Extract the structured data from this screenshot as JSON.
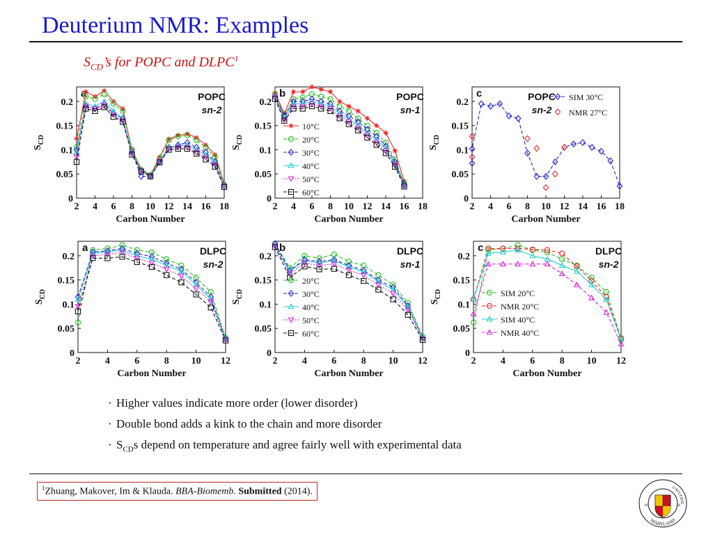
{
  "slide": {
    "title": "Deuterium NMR: Examples",
    "subtitle_pre": "S",
    "subtitle_sub": "CD",
    "subtitle_post": "’s for POPC and DLPC",
    "subtitle_sup": "1",
    "bullets": [
      {
        "pre": "Higher values indicate more order (lower disorder)",
        "sub": "",
        "post": ""
      },
      {
        "pre": "Double bond adds a kink to the chain and more disorder",
        "sub": "",
        "post": ""
      },
      {
        "pre": "S",
        "sub": "CD",
        "post": "s depend on temperature and agree fairly well with experimental data"
      }
    ],
    "citation": {
      "sup": "1",
      "authors": "Zhuang, Makover, Im & Klauda. ",
      "journal": "BBA-Biomemb.",
      "status": "Submitted",
      "year": " (2014)."
    },
    "logo": {
      "ring_top": "UNIVERSITY OF",
      "ring_bottom": "MARYLAND",
      "year_left": "18",
      "year_right": "56"
    }
  },
  "chart_data": [
    {
      "type": "line",
      "panel_letter": "a",
      "label1": "POPC",
      "label2": "sn-2",
      "xlabel": "Carbon Number",
      "ylabel": "S",
      "ylabel_sub": "CD",
      "xlim": [
        2,
        18
      ],
      "ylim": [
        0,
        0.23
      ],
      "xticks": [
        2,
        4,
        6,
        8,
        10,
        12,
        14,
        16,
        18
      ],
      "yticks": [
        0,
        0.05,
        0.1,
        0.15,
        0.2
      ],
      "x": [
        2,
        3,
        4,
        5,
        6,
        7,
        8,
        9,
        10,
        11,
        12,
        13,
        14,
        15,
        16,
        17,
        18
      ],
      "legend_position": "none",
      "series": [
        {
          "name": "10°C",
          "color": "#ee2222",
          "marker": "star",
          "dash": "",
          "values": [
            0.123,
            0.22,
            0.21,
            0.222,
            0.2,
            0.185,
            0.1,
            0.06,
            0.048,
            0.085,
            0.122,
            0.13,
            0.133,
            0.125,
            0.11,
            0.09,
            0.03
          ]
        },
        {
          "name": "20°C",
          "color": "#22bb22",
          "marker": "circle",
          "dash": "5,3",
          "values": [
            0.105,
            0.21,
            0.205,
            0.215,
            0.195,
            0.18,
            0.1,
            0.058,
            0.048,
            0.082,
            0.12,
            0.128,
            0.13,
            0.12,
            0.105,
            0.085,
            0.027
          ]
        },
        {
          "name": "30°C",
          "color": "#2222cc",
          "marker": "diamond",
          "dash": "5,3",
          "values": [
            0.1,
            0.19,
            0.185,
            0.195,
            0.175,
            0.165,
            0.095,
            0.045,
            0.045,
            0.075,
            0.105,
            0.11,
            0.115,
            0.105,
            0.095,
            0.075,
            0.025
          ]
        },
        {
          "name": "40°C",
          "color": "#22cccc",
          "marker": "triangle",
          "dash": "",
          "values": [
            0.095,
            0.195,
            0.19,
            0.2,
            0.18,
            0.165,
            0.095,
            0.057,
            0.046,
            0.078,
            0.105,
            0.108,
            0.11,
            0.1,
            0.09,
            0.072,
            0.025
          ]
        },
        {
          "name": "50°C",
          "color": "#dd22dd",
          "marker": "tridown",
          "dash": "2,2",
          "values": [
            0.085,
            0.19,
            0.185,
            0.192,
            0.172,
            0.16,
            0.092,
            0.056,
            0.045,
            0.076,
            0.102,
            0.105,
            0.105,
            0.095,
            0.085,
            0.068,
            0.024
          ]
        },
        {
          "name": "60°C",
          "color": "#111111",
          "marker": "square",
          "dash": "5,3",
          "values": [
            0.075,
            0.185,
            0.18,
            0.188,
            0.168,
            0.158,
            0.09,
            0.055,
            0.045,
            0.074,
            0.1,
            0.102,
            0.102,
            0.092,
            0.08,
            0.065,
            0.023
          ]
        }
      ]
    },
    {
      "type": "line",
      "panel_letter": "b",
      "label1": "POPC",
      "label2": "sn-1",
      "xlabel": "Carbon Number",
      "ylabel": "S",
      "ylabel_sub": "CD",
      "xlim": [
        2,
        18
      ],
      "ylim": [
        0,
        0.23
      ],
      "xticks": [
        2,
        4,
        6,
        8,
        10,
        12,
        14,
        16,
        18
      ],
      "yticks": [
        0,
        0.05,
        0.1,
        0.15,
        0.2
      ],
      "x": [
        2,
        3,
        4,
        5,
        6,
        7,
        8,
        9,
        10,
        11,
        12,
        13,
        14,
        15,
        16
      ],
      "legend_position": "left",
      "series": [
        {
          "name": "10°C",
          "color": "#ee2222",
          "marker": "star",
          "dash": "",
          "values": [
            0.218,
            0.175,
            0.22,
            0.22,
            0.23,
            0.225,
            0.22,
            0.2,
            0.19,
            0.18,
            0.165,
            0.15,
            0.135,
            0.098,
            0.035
          ]
        },
        {
          "name": "20°C",
          "color": "#22bb22",
          "marker": "circle",
          "dash": "5,3",
          "values": [
            0.215,
            0.17,
            0.205,
            0.208,
            0.215,
            0.21,
            0.205,
            0.19,
            0.18,
            0.165,
            0.15,
            0.135,
            0.115,
            0.08,
            0.03
          ]
        },
        {
          "name": "30°C",
          "color": "#2222cc",
          "marker": "diamond",
          "dash": "5,3",
          "values": [
            0.21,
            0.17,
            0.2,
            0.2,
            0.205,
            0.2,
            0.195,
            0.18,
            0.17,
            0.158,
            0.142,
            0.128,
            0.108,
            0.075,
            0.028
          ]
        },
        {
          "name": "40°C",
          "color": "#22cccc",
          "marker": "triangle",
          "dash": "",
          "values": [
            0.21,
            0.165,
            0.195,
            0.195,
            0.2,
            0.195,
            0.19,
            0.175,
            0.163,
            0.15,
            0.135,
            0.12,
            0.102,
            0.07,
            0.026
          ]
        },
        {
          "name": "50°C",
          "color": "#dd22dd",
          "marker": "tridown",
          "dash": "2,2",
          "values": [
            0.208,
            0.162,
            0.19,
            0.19,
            0.195,
            0.19,
            0.185,
            0.17,
            0.158,
            0.145,
            0.13,
            0.115,
            0.098,
            0.068,
            0.025
          ]
        },
        {
          "name": "60°C",
          "color": "#111111",
          "marker": "square",
          "dash": "5,3",
          "values": [
            0.205,
            0.16,
            0.185,
            0.185,
            0.19,
            0.185,
            0.18,
            0.165,
            0.153,
            0.14,
            0.125,
            0.11,
            0.093,
            0.065,
            0.024
          ]
        }
      ]
    },
    {
      "type": "line",
      "panel_letter": "c",
      "label1": "POPC",
      "label2": "sn-2",
      "xlabel": "Carbon Number",
      "ylabel": "S",
      "ylabel_sub": "CD",
      "xlim": [
        2,
        18
      ],
      "ylim": [
        0,
        0.23
      ],
      "xticks": [
        2,
        4,
        6,
        8,
        10,
        12,
        14,
        16,
        18
      ],
      "yticks": [
        0,
        0.05,
        0.1,
        0.15,
        0.2
      ],
      "legend_position": "top-right",
      "series": [
        {
          "name": "SIM 30°C",
          "color": "#2222cc",
          "marker": "diamond",
          "dash": "5,3",
          "line": true,
          "x": [
            2,
            2,
            3,
            4,
            5,
            6,
            7,
            8,
            9,
            10,
            11,
            12,
            13,
            14,
            15,
            16,
            17,
            18
          ],
          "values": [
            0.072,
            0.102,
            0.195,
            0.19,
            0.195,
            0.17,
            0.165,
            0.093,
            0.045,
            0.045,
            0.075,
            0.105,
            0.112,
            0.115,
            0.105,
            0.097,
            0.077,
            0.025
          ]
        },
        {
          "name": "NMR 27°C",
          "color": "#ee2222",
          "marker": "diamond",
          "dash": "",
          "line": false,
          "x": [
            2,
            2,
            8,
            9,
            10,
            11,
            12
          ],
          "values": [
            0.128,
            0.085,
            0.123,
            0.103,
            0.022,
            0.05,
            0.105
          ]
        }
      ]
    },
    {
      "type": "line",
      "panel_letter": "a",
      "label1": "DLPC",
      "label2": "sn-2",
      "xlabel": "Carbon Number",
      "ylabel": "S",
      "ylabel_sub": "CD",
      "xlim": [
        2,
        12
      ],
      "ylim": [
        0,
        0.23
      ],
      "xticks": [
        2,
        4,
        6,
        8,
        10,
        12
      ],
      "yticks": [
        0,
        0.05,
        0.1,
        0.15,
        0.2
      ],
      "x": [
        2,
        3,
        4,
        5,
        6,
        7,
        8,
        9,
        10,
        11,
        12
      ],
      "legend_position": "none",
      "series": [
        {
          "name": "20°C",
          "color": "#22bb22",
          "marker": "circle",
          "dash": "5,3",
          "values": [
            0.062,
            0.212,
            0.215,
            0.222,
            0.212,
            0.207,
            0.193,
            0.18,
            0.155,
            0.125,
            0.03
          ]
        },
        {
          "name": "30°C",
          "color": "#2222cc",
          "marker": "diamond",
          "dash": "5,3",
          "values": [
            0.115,
            0.208,
            0.21,
            0.215,
            0.205,
            0.198,
            0.185,
            0.172,
            0.145,
            0.115,
            0.028
          ]
        },
        {
          "name": "40°C",
          "color": "#22cccc",
          "marker": "triangle",
          "dash": "",
          "values": [
            0.11,
            0.205,
            0.208,
            0.212,
            0.2,
            0.193,
            0.18,
            0.168,
            0.14,
            0.11,
            0.027
          ]
        },
        {
          "name": "50°C",
          "color": "#dd22dd",
          "marker": "tridown",
          "dash": "2,2",
          "values": [
            0.095,
            0.2,
            0.203,
            0.207,
            0.195,
            0.185,
            0.172,
            0.158,
            0.132,
            0.105,
            0.026
          ]
        },
        {
          "name": "60°C",
          "color": "#111111",
          "marker": "square",
          "dash": "5,3",
          "values": [
            0.085,
            0.195,
            0.195,
            0.198,
            0.187,
            0.177,
            0.16,
            0.145,
            0.12,
            0.093,
            0.025
          ]
        }
      ]
    },
    {
      "type": "line",
      "panel_letter": "b",
      "label1": "DLPC",
      "label2": "sn-1",
      "xlabel": "Carbon Number",
      "ylabel": "S",
      "ylabel_sub": "CD",
      "xlim": [
        2,
        12
      ],
      "ylim": [
        0,
        0.23
      ],
      "xticks": [
        2,
        4,
        6,
        8,
        10,
        12
      ],
      "yticks": [
        0,
        0.05,
        0.1,
        0.15,
        0.2
      ],
      "x": [
        2,
        3,
        4,
        5,
        6,
        7,
        8,
        9,
        10,
        11,
        12
      ],
      "legend_position": "left",
      "series": [
        {
          "name": "20°C",
          "color": "#22bb22",
          "marker": "circle",
          "dash": "5,3",
          "values": [
            0.225,
            0.175,
            0.2,
            0.195,
            0.203,
            0.188,
            0.18,
            0.16,
            0.14,
            0.103,
            0.033
          ]
        },
        {
          "name": "30°C",
          "color": "#2222cc",
          "marker": "diamond",
          "dash": "5,3",
          "values": [
            0.225,
            0.17,
            0.192,
            0.188,
            0.192,
            0.18,
            0.17,
            0.15,
            0.135,
            0.097,
            0.03
          ]
        },
        {
          "name": "40°C",
          "color": "#22cccc",
          "marker": "triangle",
          "dash": "",
          "values": [
            0.222,
            0.168,
            0.19,
            0.185,
            0.19,
            0.177,
            0.167,
            0.147,
            0.13,
            0.094,
            0.029
          ]
        },
        {
          "name": "50°C",
          "color": "#dd22dd",
          "marker": "tridown",
          "dash": "2,2",
          "values": [
            0.22,
            0.163,
            0.185,
            0.18,
            0.183,
            0.17,
            0.16,
            0.14,
            0.122,
            0.088,
            0.028
          ]
        },
        {
          "name": "60°C",
          "color": "#111111",
          "marker": "square",
          "dash": "5,3",
          "values": [
            0.218,
            0.155,
            0.178,
            0.172,
            0.173,
            0.16,
            0.148,
            0.13,
            0.11,
            0.078,
            0.026
          ]
        }
      ]
    },
    {
      "type": "line",
      "panel_letter": "c",
      "label1": "DLPC",
      "label2": "sn-2",
      "xlabel": "Carbon Number",
      "ylabel": "S",
      "ylabel_sub": "CD",
      "xlim": [
        2,
        12
      ],
      "ylim": [
        0,
        0.23
      ],
      "xticks": [
        2,
        4,
        6,
        8,
        10,
        12
      ],
      "yticks": [
        0,
        0.05,
        0.1,
        0.15,
        0.2
      ],
      "x": [
        2,
        3,
        4,
        5,
        6,
        7,
        8,
        9,
        10,
        11,
        12
      ],
      "legend_position": "left",
      "series": [
        {
          "name": "SIM 20°C",
          "color": "#22bb22",
          "marker": "circle",
          "dash": "5,3",
          "values": [
            0.062,
            0.212,
            0.215,
            0.222,
            0.212,
            0.207,
            0.193,
            0.18,
            0.155,
            0.125,
            0.03
          ]
        },
        {
          "name": "NMR 20°C",
          "color": "#ee2222",
          "marker": "circle",
          "dash": "5,3",
          "values": [
            0.11,
            0.215,
            0.215,
            0.215,
            0.213,
            0.212,
            0.205,
            0.178,
            0.148,
            0.115,
            0.028
          ]
        },
        {
          "name": "SIM 40°C",
          "color": "#22cccc",
          "marker": "triangle",
          "dash": "",
          "values": [
            0.11,
            0.205,
            0.208,
            0.212,
            0.2,
            0.193,
            0.18,
            0.168,
            0.14,
            0.11,
            0.027
          ]
        },
        {
          "name": "NMR 40°C",
          "color": "#dd22dd",
          "marker": "triangle",
          "dash": "5,3",
          "values": [
            0.08,
            0.183,
            0.183,
            0.183,
            0.183,
            0.183,
            0.163,
            0.14,
            0.113,
            0.083,
            0.018
          ]
        }
      ]
    }
  ]
}
